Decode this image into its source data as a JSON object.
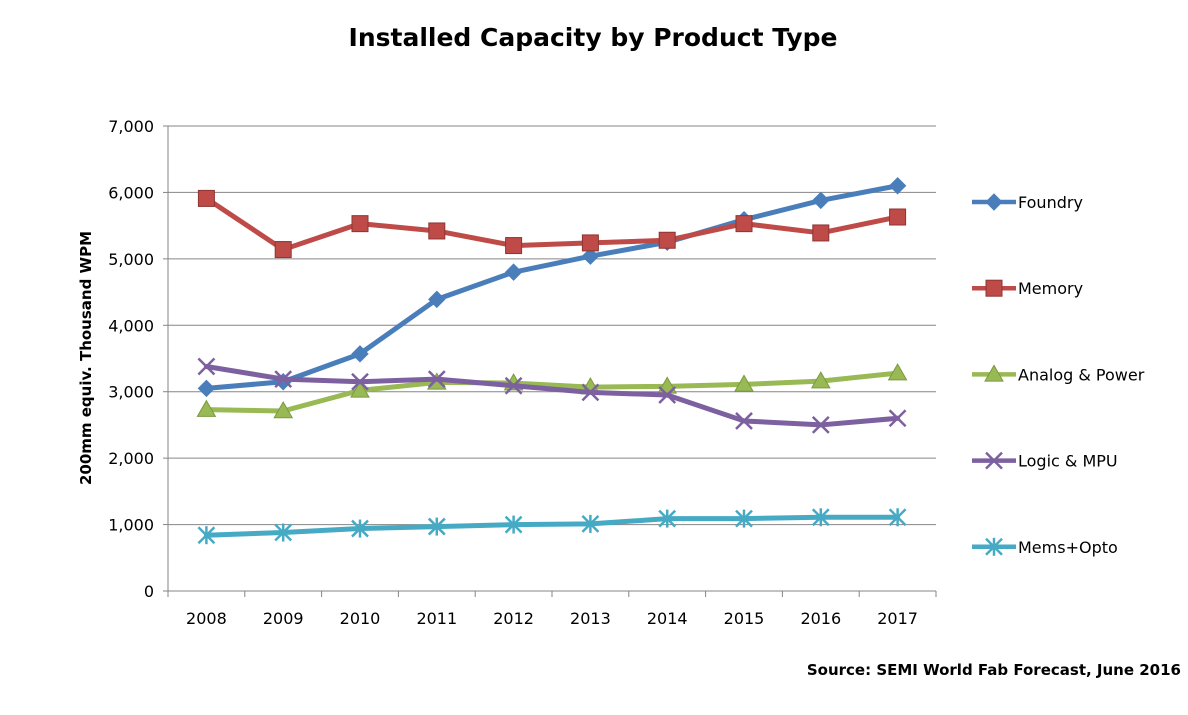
{
  "chart_data": {
    "type": "line",
    "title": "Installed Capacity by Product Type",
    "xlabel": "",
    "ylabel": "200mm equiv. Thousand  WPM",
    "source": "Source: SEMI World Fab Forecast, June 2016",
    "categories": [
      "2008",
      "2009",
      "2010",
      "2011",
      "2012",
      "2013",
      "2014",
      "2015",
      "2016",
      "2017"
    ],
    "ylim": [
      0,
      7000
    ],
    "yticks": [
      0,
      1000,
      2000,
      3000,
      4000,
      5000,
      6000,
      7000
    ],
    "ytick_labels": [
      "0",
      "1,000",
      "2,000",
      "3,000",
      "4,000",
      "5,000",
      "6,000",
      "7,000"
    ],
    "grid": true,
    "legend_position": "right",
    "series": [
      {
        "name": "Foundry",
        "color": "#4a7ebb",
        "marker": "diamond",
        "values": [
          3050,
          3150,
          3570,
          4390,
          4800,
          5040,
          5250,
          5590,
          5880,
          6100
        ]
      },
      {
        "name": "Memory",
        "color": "#be4b48",
        "marker": "square",
        "values": [
          5910,
          5140,
          5530,
          5420,
          5200,
          5240,
          5280,
          5530,
          5390,
          5630
        ]
      },
      {
        "name": "Analog & Power",
        "color": "#98b954",
        "marker": "triangle",
        "values": [
          2730,
          2710,
          3020,
          3140,
          3130,
          3070,
          3080,
          3110,
          3160,
          3280
        ]
      },
      {
        "name": "Logic & MPU",
        "color": "#7d60a0",
        "marker": "x",
        "values": [
          3380,
          3190,
          3150,
          3190,
          3090,
          2990,
          2950,
          2560,
          2500,
          2600
        ]
      },
      {
        "name": "Mems+Opto",
        "color": "#46aac5",
        "marker": "asterisk",
        "values": [
          840,
          880,
          940,
          970,
          1000,
          1010,
          1090,
          1090,
          1110,
          1110
        ]
      }
    ]
  }
}
